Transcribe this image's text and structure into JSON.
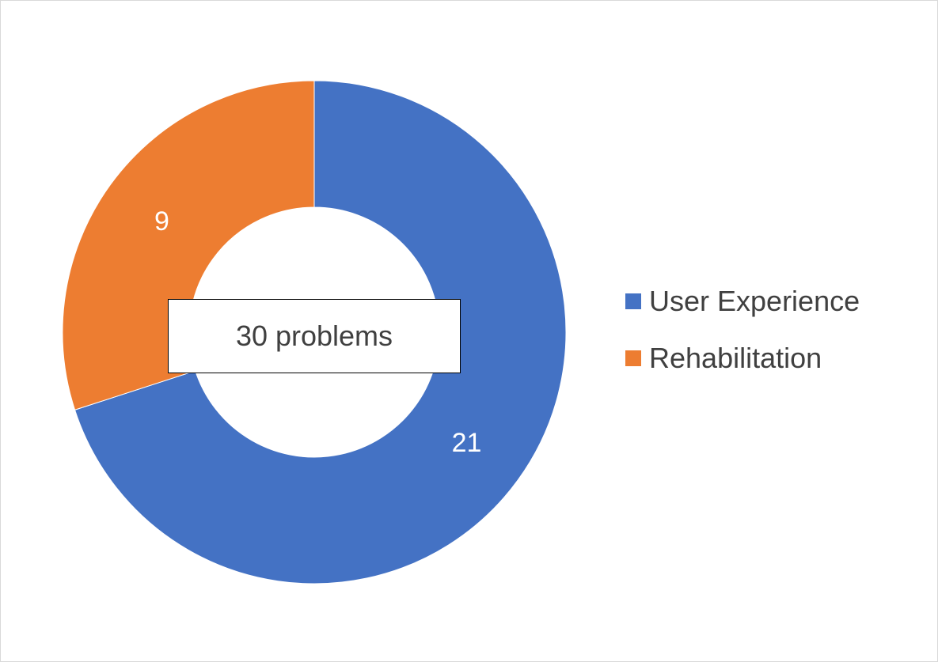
{
  "chart_data": {
    "type": "pie",
    "variant": "doughnut",
    "title": "",
    "center_label": "30 problems",
    "categories": [
      "User Experience",
      "Rehabilitation"
    ],
    "values": [
      21,
      9
    ],
    "colors": [
      "#4472C4",
      "#ED7D31"
    ],
    "data_labels": [
      "21",
      "9"
    ],
    "legend_position": "right"
  }
}
